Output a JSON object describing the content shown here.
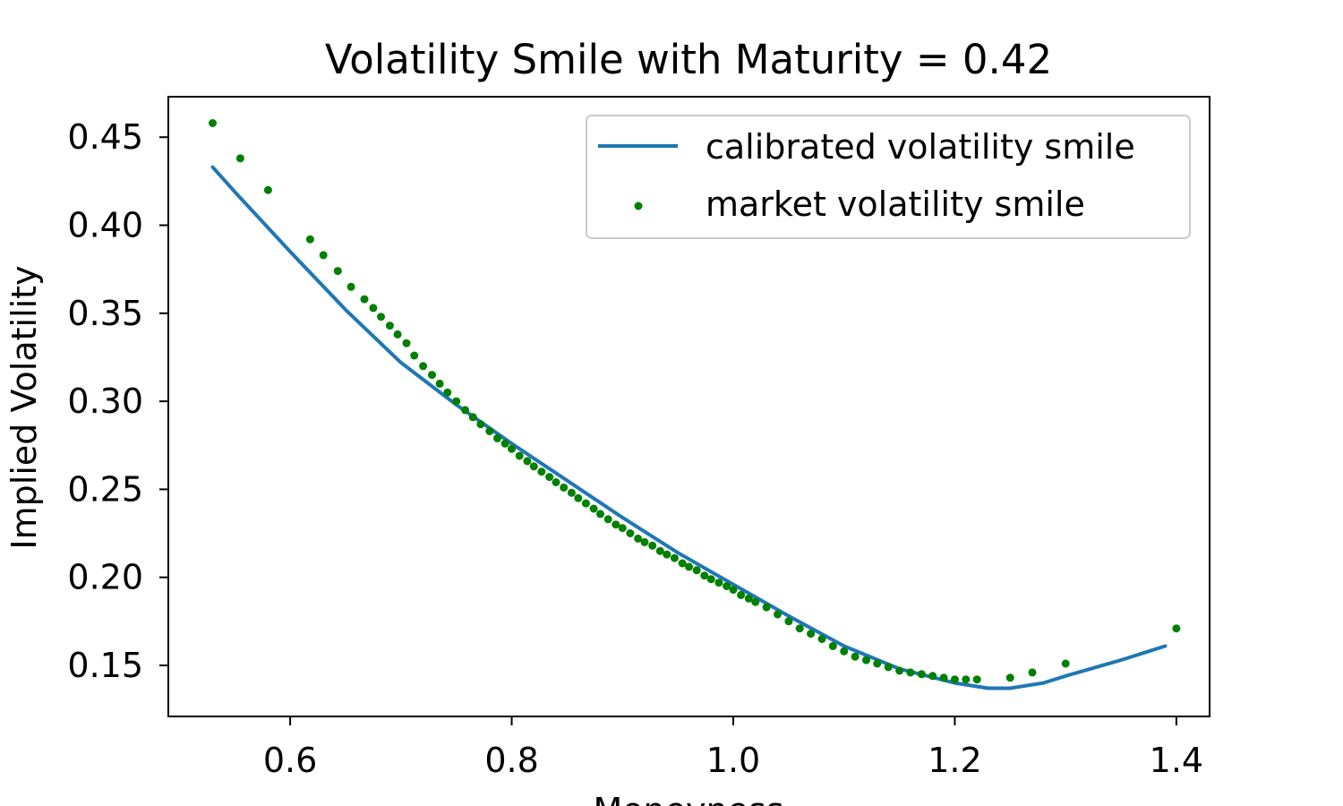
{
  "chart_data": {
    "type": "scatter",
    "title": "Volatility Smile with Maturity = 0.42",
    "xlabel": "Moneyness",
    "ylabel": "Implied Volatility",
    "xlim": [
      0.49,
      1.43
    ],
    "ylim": [
      0.121,
      0.473
    ],
    "x_ticks": [
      0.6,
      0.8,
      1.0,
      1.2,
      1.4
    ],
    "x_tick_labels": [
      "0.6",
      "0.8",
      "1.0",
      "1.2",
      "1.4"
    ],
    "y_ticks": [
      0.15,
      0.2,
      0.25,
      0.3,
      0.35,
      0.4,
      0.45
    ],
    "y_tick_labels": [
      "0.15",
      "0.20",
      "0.25",
      "0.30",
      "0.35",
      "0.40",
      "0.45"
    ],
    "legend_position": "top-right",
    "colors": {
      "line": "#1f77b4",
      "points": "#008000",
      "axes": "#000000"
    },
    "series": [
      {
        "name": "calibrated volatility smile",
        "kind": "line",
        "x": [
          0.53,
          0.55,
          0.6,
          0.65,
          0.7,
          0.75,
          0.8,
          0.85,
          0.9,
          0.95,
          1.0,
          1.05,
          1.1,
          1.15,
          1.2,
          1.23,
          1.25,
          1.28,
          1.3,
          1.35,
          1.39
        ],
        "y": [
          0.433,
          0.419,
          0.385,
          0.352,
          0.322,
          0.298,
          0.276,
          0.255,
          0.234,
          0.214,
          0.196,
          0.178,
          0.161,
          0.148,
          0.14,
          0.137,
          0.137,
          0.14,
          0.144,
          0.153,
          0.161
        ]
      },
      {
        "name": "market volatility smile",
        "kind": "scatter",
        "x": [
          0.53,
          0.555,
          0.58,
          0.618,
          0.63,
          0.643,
          0.655,
          0.667,
          0.675,
          0.682,
          0.69,
          0.697,
          0.705,
          0.712,
          0.72,
          0.728,
          0.735,
          0.742,
          0.75,
          0.758,
          0.765,
          0.772,
          0.78,
          0.787,
          0.794,
          0.8,
          0.807,
          0.814,
          0.82,
          0.827,
          0.834,
          0.84,
          0.847,
          0.854,
          0.86,
          0.867,
          0.874,
          0.88,
          0.887,
          0.894,
          0.9,
          0.907,
          0.914,
          0.92,
          0.927,
          0.934,
          0.94,
          0.947,
          0.954,
          0.96,
          0.967,
          0.974,
          0.98,
          0.987,
          0.994,
          1.0,
          1.007,
          1.014,
          1.02,
          1.03,
          1.04,
          1.05,
          1.06,
          1.07,
          1.08,
          1.09,
          1.1,
          1.11,
          1.12,
          1.13,
          1.14,
          1.15,
          1.16,
          1.17,
          1.18,
          1.19,
          1.2,
          1.21,
          1.22,
          1.25,
          1.27,
          1.3,
          1.4
        ],
        "y": [
          0.458,
          0.438,
          0.42,
          0.392,
          0.383,
          0.374,
          0.365,
          0.358,
          0.353,
          0.348,
          0.343,
          0.338,
          0.333,
          0.326,
          0.32,
          0.315,
          0.31,
          0.305,
          0.3,
          0.295,
          0.291,
          0.287,
          0.283,
          0.279,
          0.276,
          0.273,
          0.269,
          0.266,
          0.263,
          0.26,
          0.257,
          0.254,
          0.251,
          0.248,
          0.245,
          0.242,
          0.239,
          0.236,
          0.233,
          0.23,
          0.228,
          0.225,
          0.222,
          0.22,
          0.218,
          0.215,
          0.213,
          0.211,
          0.208,
          0.206,
          0.204,
          0.201,
          0.199,
          0.197,
          0.195,
          0.193,
          0.19,
          0.188,
          0.186,
          0.183,
          0.179,
          0.175,
          0.171,
          0.168,
          0.165,
          0.161,
          0.158,
          0.155,
          0.153,
          0.151,
          0.149,
          0.147,
          0.146,
          0.145,
          0.144,
          0.143,
          0.142,
          0.142,
          0.142,
          0.143,
          0.146,
          0.151,
          0.171
        ]
      }
    ]
  }
}
